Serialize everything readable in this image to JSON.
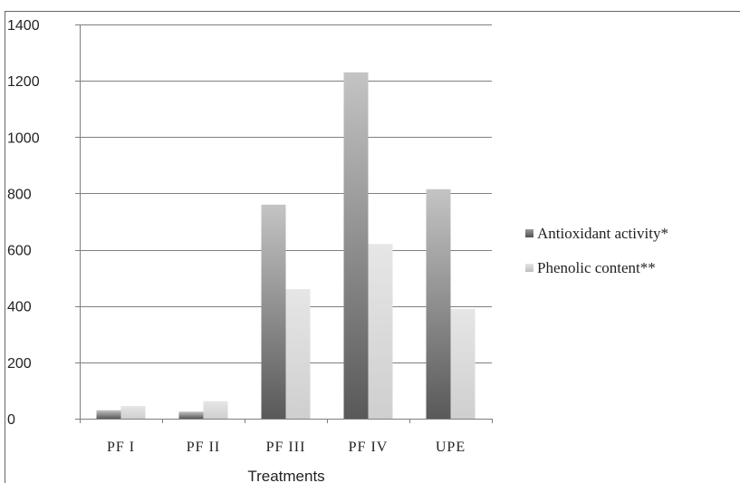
{
  "chart_data": {
    "type": "bar",
    "title": "",
    "xlabel": "Treatments",
    "ylabel": "",
    "categories": [
      "PF I",
      "PF II",
      "PF III",
      "PF IV",
      "UPE"
    ],
    "series": [
      {
        "name": "Antioxidant activity*",
        "values": [
          30,
          25,
          760,
          1230,
          815
        ]
      },
      {
        "name": "Phenolic content**",
        "values": [
          45,
          62,
          460,
          620,
          390
        ]
      }
    ],
    "ylim": [
      0,
      1400
    ],
    "yticks": [
      0,
      200,
      400,
      600,
      800,
      1000,
      1200,
      1400
    ],
    "grid": true,
    "legend": "right"
  }
}
